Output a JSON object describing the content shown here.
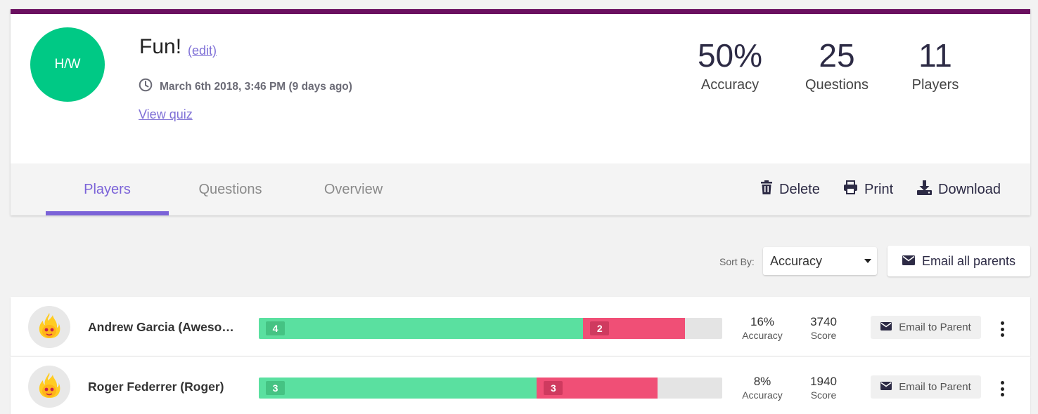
{
  "header": {
    "avatar_text": "H/W",
    "title": "Fun!",
    "edit_label": "(edit)",
    "date": "March 6th 2018, 3:46 PM (9 days ago)",
    "view_quiz_label": "View quiz",
    "accent_color": "#6b1060",
    "avatar_color": "#00c985"
  },
  "stats": [
    {
      "value": "50%",
      "label": "Accuracy"
    },
    {
      "value": "25",
      "label": "Questions"
    },
    {
      "value": "11",
      "label": "Players"
    }
  ],
  "tabs": [
    {
      "label": "Players",
      "active": true
    },
    {
      "label": "Questions",
      "active": false
    },
    {
      "label": "Overview",
      "active": false
    }
  ],
  "actions": {
    "delete_label": "Delete",
    "print_label": "Print",
    "download_label": "Download"
  },
  "sort": {
    "label": "Sort By:",
    "selected": "Accuracy"
  },
  "email_all_label": "Email all parents",
  "players": [
    {
      "name": "Andrew Garcia (Awesome)",
      "correct": 4,
      "incorrect": 2,
      "correct_fraction": 0.7,
      "incorrect_fraction": 0.22,
      "accuracy": "16%",
      "accuracy_label": "Accuracy",
      "score": "3740",
      "score_label": "Score",
      "email_label": "Email to Parent"
    },
    {
      "name": "Roger Federrer (Roger)",
      "correct": 3,
      "incorrect": 3,
      "correct_fraction": 0.6,
      "incorrect_fraction": 0.26,
      "accuracy": "8%",
      "accuracy_label": "Accuracy",
      "score": "1940",
      "score_label": "Score",
      "email_label": "Email to Parent"
    }
  ]
}
